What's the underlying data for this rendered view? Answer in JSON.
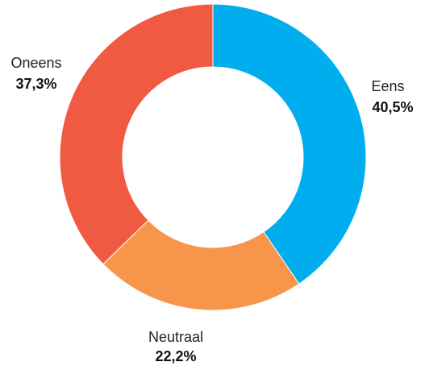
{
  "chart_data": {
    "type": "pie",
    "variant": "donut",
    "legend": "none",
    "slices": [
      {
        "label": "Eens",
        "value": 40.5,
        "value_text": "40,5%",
        "color": "#00aeef"
      },
      {
        "label": "Neutraal",
        "value": 22.2,
        "value_text": "22,2%",
        "color": "#f7964a"
      },
      {
        "label": "Oneens",
        "value": 37.3,
        "value_text": "37,3%",
        "color": "#f15a42"
      }
    ]
  }
}
